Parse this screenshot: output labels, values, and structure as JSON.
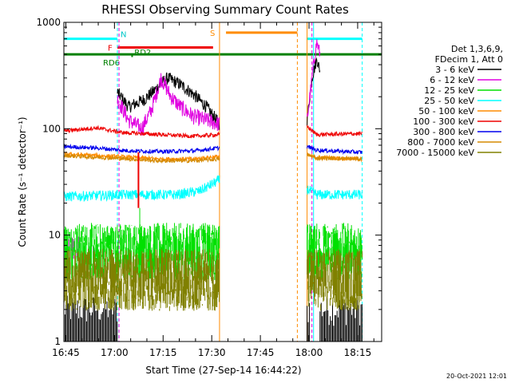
{
  "chart_data": {
    "type": "line",
    "title": "RHESSI Observing Summary Count Rates",
    "xlabel": "Start Time (27-Sep-14 16:44:22)",
    "ylabel": "Count Rate (s⁻¹ detector⁻¹)",
    "x_unit": "minutes after 16:44:22",
    "xlim": [
      0,
      98
    ],
    "ylim": [
      1,
      1000
    ],
    "yscale": "log",
    "x_ticks": [
      {
        "t": 0.6,
        "label": "16:45"
      },
      {
        "t": 15.6,
        "label": "17:00"
      },
      {
        "t": 30.6,
        "label": "17:15"
      },
      {
        "t": 45.6,
        "label": "17:30"
      },
      {
        "t": 60.6,
        "label": "17:45"
      },
      {
        "t": 75.6,
        "label": "18:00"
      },
      {
        "t": 90.6,
        "label": "18:15"
      }
    ],
    "y_ticks": [
      {
        "v": 1,
        "label": "1"
      },
      {
        "v": 10,
        "label": "10"
      },
      {
        "v": 100,
        "label": "100"
      },
      {
        "v": 1000,
        "label": "1000"
      }
    ],
    "legend_header": [
      "Det 1,3,6,9,",
      "FDecim 1, Att 0"
    ],
    "series": [
      {
        "name": "3 - 6 keV",
        "color": "#000000",
        "kind": "black",
        "points": [
          [
            16.5,
            220
          ],
          [
            20,
            160
          ],
          [
            25,
            190
          ],
          [
            28,
            230
          ],
          [
            32,
            300
          ],
          [
            36,
            260
          ],
          [
            40,
            210
          ],
          [
            44,
            160
          ],
          [
            48,
            110
          ],
          [
            75,
            120
          ],
          [
            76.5,
            300
          ],
          [
            78,
            450
          ],
          [
            79,
            350
          ]
        ],
        "gap": [
          48,
          75
        ]
      },
      {
        "name": "6 - 12 keV",
        "color": "#e000e0",
        "kind": "magenta",
        "points": [
          [
            16.5,
            190
          ],
          [
            20,
            120
          ],
          [
            24,
            100
          ],
          [
            27,
            150
          ],
          [
            30,
            300
          ],
          [
            33,
            200
          ],
          [
            36,
            160
          ],
          [
            40,
            130
          ],
          [
            44,
            120
          ],
          [
            48,
            110
          ],
          [
            75,
            120
          ],
          [
            77,
            400
          ],
          [
            78,
            650
          ],
          [
            79,
            500
          ]
        ],
        "gap": [
          48,
          75
        ]
      },
      {
        "name": "12 - 25 keV",
        "color": "#00e000",
        "level": 7.0,
        "spread": 1.25,
        "gap": [
          48,
          75
        ]
      },
      {
        "name": "25 - 50 keV",
        "color": "#00ffff",
        "points": [
          [
            0,
            23
          ],
          [
            20,
            24
          ],
          [
            35,
            24
          ],
          [
            42,
            26
          ],
          [
            48,
            33
          ],
          [
            75,
            27
          ],
          [
            78,
            24
          ],
          [
            92,
            24
          ]
        ],
        "gap": [
          48,
          75
        ]
      },
      {
        "name": "50 - 100 keV",
        "color": "#ff8c00",
        "points": [
          [
            0,
            58
          ],
          [
            20,
            54
          ],
          [
            30,
            52
          ],
          [
            40,
            52
          ],
          [
            48,
            55
          ],
          [
            75,
            56
          ],
          [
            78,
            54
          ],
          [
            92,
            52
          ]
        ],
        "gap": [
          48,
          75
        ]
      },
      {
        "name": "100 - 300 keV",
        "color": "#ee0000",
        "points": [
          [
            0,
            95
          ],
          [
            10,
            102
          ],
          [
            18,
            92
          ],
          [
            30,
            88
          ],
          [
            40,
            85
          ],
          [
            48,
            88
          ],
          [
            75,
            105
          ],
          [
            78,
            88
          ],
          [
            92,
            90
          ]
        ],
        "gap": [
          48,
          75
        ]
      },
      {
        "name": "300 - 800 keV",
        "color": "#0000ee",
        "points": [
          [
            0,
            68
          ],
          [
            10,
            66
          ],
          [
            20,
            62
          ],
          [
            30,
            61
          ],
          [
            40,
            62
          ],
          [
            48,
            66
          ],
          [
            75,
            68
          ],
          [
            78,
            63
          ],
          [
            92,
            60
          ]
        ],
        "gap": [
          48,
          75
        ]
      },
      {
        "name": "800 - 7000 keV",
        "color": "#d58a00",
        "points": [
          [
            0,
            56
          ],
          [
            20,
            52
          ],
          [
            30,
            50
          ],
          [
            40,
            50
          ],
          [
            48,
            52
          ],
          [
            75,
            57
          ],
          [
            78,
            53
          ],
          [
            92,
            52
          ]
        ],
        "gap": [
          48,
          75
        ]
      },
      {
        "name": "7000 - 15000 keV",
        "color": "#808000",
        "level": 3.8,
        "spread": 1.35,
        "gap": [
          48,
          75
        ]
      }
    ],
    "flags": [
      {
        "label": "N",
        "color": "#00ffff",
        "y": 700,
        "ranges": [
          [
            0,
            16.5
          ],
          [
            75,
            92
          ]
        ]
      },
      {
        "label": "F",
        "color": "#ee0000",
        "y": 580,
        "ranges": [
          [
            16.5,
            46
          ]
        ]
      },
      {
        "label": "S",
        "color": "#ff8c00",
        "y": 800,
        "ranges": [
          [
            50,
            72
          ]
        ]
      },
      {
        "label": "RD6",
        "color": "#008000",
        "y": 500,
        "ranges": [
          [
            0,
            98
          ]
        ]
      },
      {
        "label": "RD2",
        "color": "#008000",
        "y": 530,
        "ranges": []
      }
    ],
    "vertical_lines": [
      {
        "t": 0,
        "color": "#00ffff",
        "style": "solid"
      },
      {
        "t": 16.5,
        "color": "#00ffff",
        "style": "dashed"
      },
      {
        "t": 17.0,
        "color": "#e000e0",
        "style": "dashed"
      },
      {
        "t": 48.0,
        "color": "#ff8c00",
        "style": "solid"
      },
      {
        "t": 72.0,
        "color": "#ff8c00",
        "style": "dashed"
      },
      {
        "t": 75.0,
        "color": "#ff8c00",
        "style": "solid"
      },
      {
        "t": 76.5,
        "color": "#e000e0",
        "style": "dashed"
      },
      {
        "t": 77.0,
        "color": "#00ffff",
        "style": "solid"
      },
      {
        "t": 92.0,
        "color": "#00ffff",
        "style": "dashed"
      }
    ],
    "footer_timestamp": "20-Oct-2021 12:01"
  }
}
